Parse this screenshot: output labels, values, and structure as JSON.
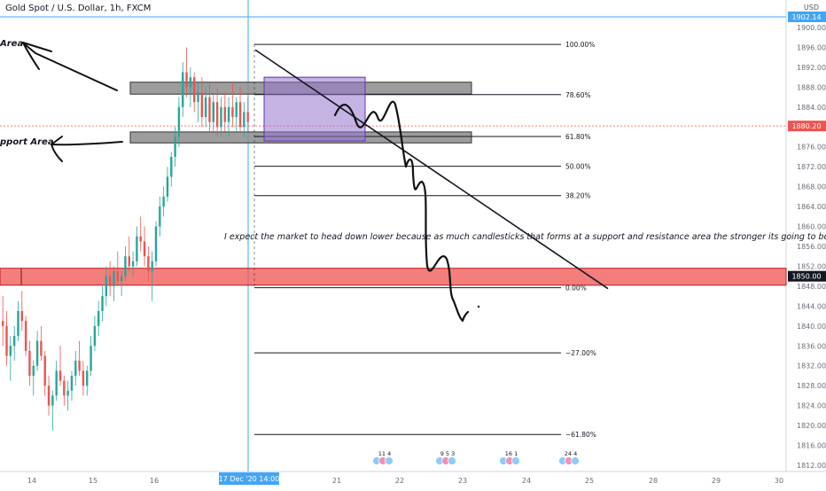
{
  "header": {
    "title": "Gold Spot / U.S. Dollar, 1h, FXCM",
    "currency": "USD"
  },
  "annotations": {
    "note": "I expect the market to head down lower because as much candlesticks that forms at a support and resistance area the stronger its going to be simple",
    "upper_zone_label": "Area",
    "lower_zone_label": "pport Area"
  },
  "colors": {
    "up_candle": "#26a69a",
    "down_candle": "#ef5350",
    "zone_fill": "#8c8c8c",
    "resistance_fill": "#ef5350",
    "box_fill": "#9575cd",
    "crosshair": "#42a5f5",
    "dotted_line": "#ef5350"
  },
  "chart_data": {
    "type": "candlestick",
    "symbol": "XAUUSD",
    "ylim": [
      1810,
      1904
    ],
    "yticks": [
      "1812.00",
      "1816.00",
      "1820.00",
      "1824.00",
      "1828.00",
      "1832.00",
      "1836.00",
      "1840.00",
      "1844.00",
      "1848.00",
      "1852.00",
      "1856.00",
      "1860.00",
      "1864.00",
      "1868.00",
      "1872.00",
      "1876.00",
      "1880.00",
      "1884.00",
      "1888.00",
      "1892.00",
      "1896.00",
      "1900.00"
    ],
    "xticks": [
      "14",
      "15",
      "16",
      "",
      "21",
      "22",
      "23",
      "24",
      "25",
      "28",
      "29",
      "30"
    ],
    "crosshair_x_label": "17 Dec '20   14:00",
    "price_labels": [
      {
        "label": "1902.14",
        "value": 1902.14,
        "kind": "crosshair"
      },
      {
        "label": "1880.20",
        "value": 1880.2,
        "kind": "dotted"
      },
      {
        "label": "1850.00",
        "value": 1850.0,
        "kind": "level"
      }
    ],
    "fib_levels": [
      {
        "label": "100.00%",
        "price": 1896.6
      },
      {
        "label": "78.60%",
        "price": 1886.5
      },
      {
        "label": "61.80%",
        "price": 1878.1
      },
      {
        "label": "50.00%",
        "price": 1872.1
      },
      {
        "label": "38.20%",
        "price": 1866.2
      },
      {
        "label": "0.00%",
        "price": 1847.7
      },
      {
        "label": "−27.00%",
        "price": 1834.6
      },
      {
        "label": "−61.80%",
        "price": 1818.2
      }
    ],
    "zones": [
      {
        "name": "resistance",
        "from": 1886.6,
        "to": 1889.0
      },
      {
        "name": "support",
        "from": 1876.8,
        "to": 1879.0
      },
      {
        "name": "level-1850",
        "from": 1848.2,
        "to": 1851.6
      }
    ],
    "consolidation_box": {
      "from": 1877.2,
      "to": 1890.0
    },
    "events": [
      {
        "label": "11 4"
      },
      {
        "label": "9 5 3"
      },
      {
        "label": "16 1"
      },
      {
        "label": "24 4"
      }
    ],
    "candles": [
      [
        1841,
        1846,
        1836,
        1840
      ],
      [
        1840,
        1843,
        1832,
        1834
      ],
      [
        1834,
        1838,
        1829,
        1836
      ],
      [
        1836,
        1840,
        1833,
        1838
      ],
      [
        1838,
        1845,
        1837,
        1843
      ],
      [
        1843,
        1847,
        1839,
        1841
      ],
      [
        1841,
        1842,
        1834,
        1835
      ],
      [
        1835,
        1837,
        1828,
        1830
      ],
      [
        1830,
        1833,
        1826,
        1832
      ],
      [
        1832,
        1839,
        1831,
        1837
      ],
      [
        1837,
        1840,
        1833,
        1834
      ],
      [
        1834,
        1835,
        1826,
        1828
      ],
      [
        1828,
        1830,
        1822,
        1824
      ],
      [
        1824,
        1827,
        1819,
        1826
      ],
      [
        1826,
        1833,
        1825,
        1831
      ],
      [
        1831,
        1836,
        1828,
        1829
      ],
      [
        1829,
        1830,
        1824,
        1826
      ],
      [
        1826,
        1829,
        1823,
        1827
      ],
      [
        1827,
        1831,
        1825,
        1830
      ],
      [
        1830,
        1835,
        1828,
        1833
      ],
      [
        1833,
        1837,
        1830,
        1831
      ],
      [
        1831,
        1833,
        1826,
        1828
      ],
      [
        1828,
        1832,
        1826,
        1831
      ],
      [
        1831,
        1838,
        1830,
        1836
      ],
      [
        1836,
        1842,
        1835,
        1840
      ],
      [
        1840,
        1845,
        1838,
        1843
      ],
      [
        1843,
        1848,
        1841,
        1846
      ],
      [
        1846,
        1852,
        1844,
        1850
      ],
      [
        1850,
        1853,
        1846,
        1848
      ],
      [
        1848,
        1852,
        1845,
        1851
      ],
      [
        1851,
        1855,
        1848,
        1849
      ],
      [
        1849,
        1851,
        1846,
        1850
      ],
      [
        1850,
        1856,
        1849,
        1854
      ],
      [
        1854,
        1858,
        1851,
        1852
      ],
      [
        1852,
        1855,
        1850,
        1853
      ],
      [
        1853,
        1860,
        1852,
        1858
      ],
      [
        1858,
        1862,
        1855,
        1857
      ],
      [
        1857,
        1860,
        1852,
        1854
      ],
      [
        1854,
        1856,
        1849,
        1851
      ],
      [
        1851,
        1855,
        1845,
        1853
      ],
      [
        1853,
        1861,
        1852,
        1860
      ],
      [
        1860,
        1866,
        1858,
        1864
      ],
      [
        1864,
        1868,
        1862,
        1866
      ],
      [
        1866,
        1872,
        1865,
        1870
      ],
      [
        1870,
        1875,
        1868,
        1874
      ],
      [
        1874,
        1880,
        1872,
        1878
      ],
      [
        1878,
        1886,
        1876,
        1884
      ],
      [
        1884,
        1893,
        1882,
        1891
      ],
      [
        1891,
        1896,
        1886,
        1888
      ],
      [
        1888,
        1892,
        1884,
        1890
      ],
      [
        1890,
        1891,
        1883,
        1885
      ],
      [
        1885,
        1889,
        1881,
        1887
      ],
      [
        1887,
        1890,
        1880,
        1882
      ],
      [
        1882,
        1888,
        1880,
        1886
      ],
      [
        1886,
        1889,
        1879,
        1881
      ],
      [
        1881,
        1887,
        1879,
        1885
      ],
      [
        1885,
        1888,
        1878,
        1880
      ],
      [
        1880,
        1886,
        1878,
        1884
      ],
      [
        1884,
        1887,
        1879,
        1881
      ],
      [
        1881,
        1886,
        1878,
        1884
      ],
      [
        1884,
        1889,
        1880,
        1882
      ],
      [
        1882,
        1886,
        1879,
        1885
      ],
      [
        1885,
        1888,
        1879,
        1880
      ],
      [
        1880,
        1885,
        1878,
        1883
      ],
      [
        1883,
        1886,
        1879,
        1881
      ]
    ]
  }
}
